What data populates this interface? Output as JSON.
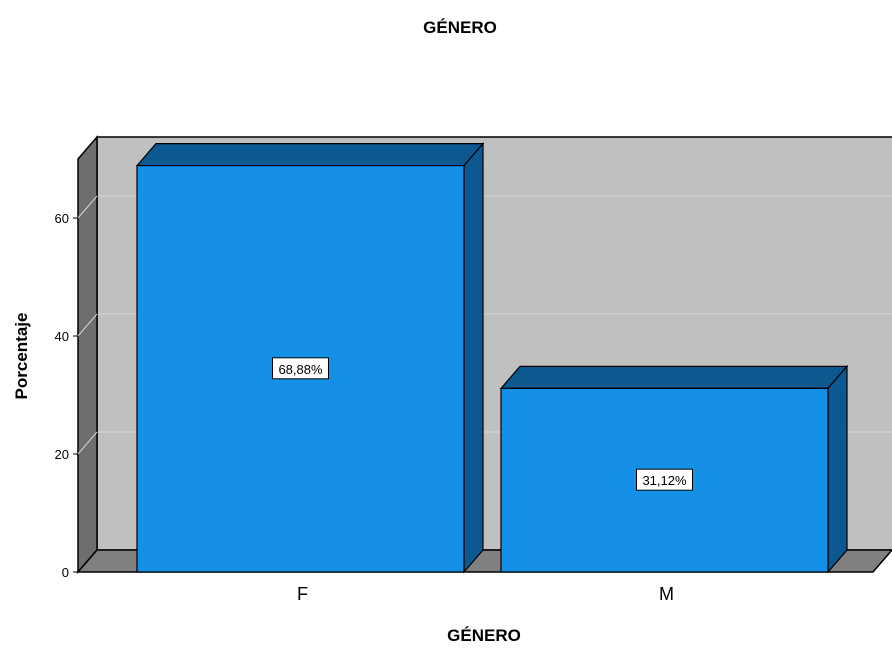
{
  "chart_data": {
    "type": "bar",
    "title": "GÉNERO",
    "xlabel": "GÉNERO",
    "ylabel": "Porcentaje",
    "categories": [
      "F",
      "M"
    ],
    "values": [
      68.88,
      31.12
    ],
    "data_labels": [
      "68,88%",
      "31,12%"
    ],
    "ylim": [
      0,
      70
    ],
    "yticks": [
      0,
      20,
      40,
      60
    ],
    "ytick_labels": [
      "0",
      "20",
      "40",
      "60"
    ],
    "grid": true,
    "style": "3d",
    "colors": {
      "bar_front": "#1491e6",
      "bar_top": "#0c5890",
      "bar_side": "#0c5890",
      "plot_background": "#c0c0c0",
      "wall_left": "#6e6e6e",
      "floor": "#808080",
      "gridline": "#d6d6d6"
    }
  }
}
